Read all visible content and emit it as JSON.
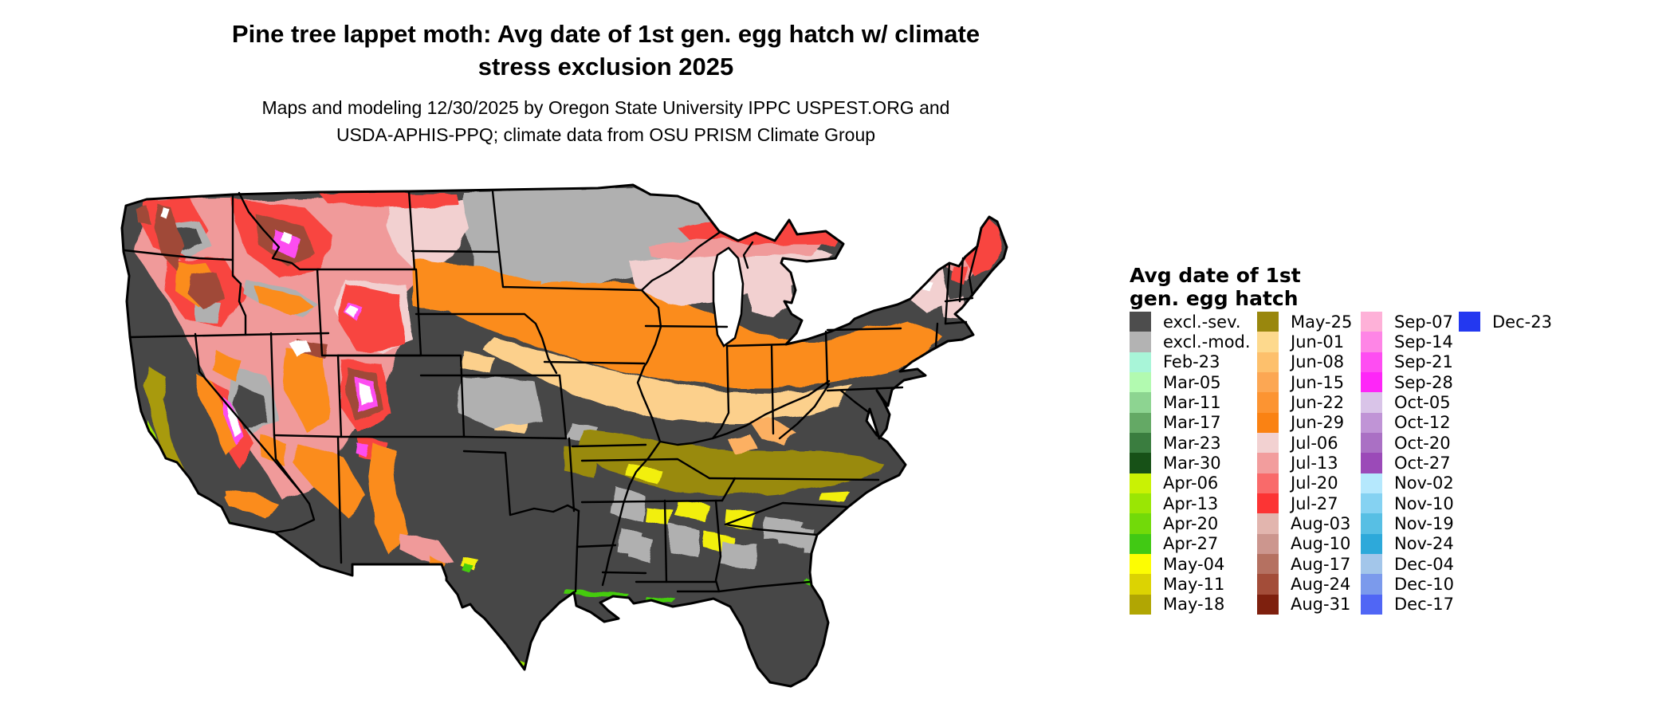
{
  "header": {
    "title_line1": "Pine tree lappet moth: Avg date of 1st gen. egg hatch w/ climate",
    "title_line2": "stress exclusion 2025",
    "subtitle_line1": "Maps and modeling 12/30/2025 by Oregon State University IPPC USPEST.ORG and",
    "subtitle_line2": "USDA-APHIS-PPQ; climate data from OSU PRISM Climate Group"
  },
  "map": {
    "region": "Contiguous United States (lower 48 states)",
    "type": "raster choropleth of modeled avg egg-hatch date",
    "boundary_color": "#000000",
    "background_color": "#ffffff"
  },
  "legend": {
    "title_line1": "Avg date of 1st",
    "title_line2": "gen. egg hatch",
    "columns": [
      {
        "entries": [
          {
            "label": "excl.-sev.",
            "color": "#4d4d4d"
          },
          {
            "label": "excl.-mod.",
            "color": "#b3b3b3"
          },
          {
            "label": "Feb-23",
            "color": "#a8f5d8"
          },
          {
            "label": "Mar-05",
            "color": "#b2fab0"
          },
          {
            "label": "Mar-11",
            "color": "#8dd491"
          },
          {
            "label": "Mar-17",
            "color": "#64a965"
          },
          {
            "label": "Mar-23",
            "color": "#3a7d3f"
          },
          {
            "label": "Mar-30",
            "color": "#175117"
          },
          {
            "label": "Apr-06",
            "color": "#c9f204"
          },
          {
            "label": "Apr-13",
            "color": "#9ae604"
          },
          {
            "label": "Apr-20",
            "color": "#72da09"
          },
          {
            "label": "Apr-27",
            "color": "#41c914"
          },
          {
            "label": "May-04",
            "color": "#fdfd02"
          },
          {
            "label": "May-11",
            "color": "#dcd302"
          },
          {
            "label": "May-18",
            "color": "#b1a603"
          }
        ]
      },
      {
        "entries": [
          {
            "label": "May-25",
            "color": "#99870d"
          },
          {
            "label": "Jun-01",
            "color": "#fdd98d"
          },
          {
            "label": "Jun-08",
            "color": "#fdc06c"
          },
          {
            "label": "Jun-15",
            "color": "#fca753"
          },
          {
            "label": "Jun-22",
            "color": "#fc9432"
          },
          {
            "label": "Jun-29",
            "color": "#fa8213"
          },
          {
            "label": "Jul-06",
            "color": "#f2d1d1"
          },
          {
            "label": "Jul-13",
            "color": "#f29d9d"
          },
          {
            "label": "Jul-20",
            "color": "#f96a6a"
          },
          {
            "label": "Jul-27",
            "color": "#fc3434"
          },
          {
            "label": "Aug-03",
            "color": "#e2b5ae"
          },
          {
            "label": "Aug-10",
            "color": "#cc968e"
          },
          {
            "label": "Aug-17",
            "color": "#b57161"
          },
          {
            "label": "Aug-24",
            "color": "#a34d39"
          },
          {
            "label": "Aug-31",
            "color": "#7e200e"
          }
        ]
      },
      {
        "entries": [
          {
            "label": "Sep-07",
            "color": "#feb1d8"
          },
          {
            "label": "Sep-14",
            "color": "#fe85e6"
          },
          {
            "label": "Sep-21",
            "color": "#fe4df2"
          },
          {
            "label": "Sep-28",
            "color": "#fe26f8"
          },
          {
            "label": "Oct-05",
            "color": "#d9c4e8"
          },
          {
            "label": "Oct-12",
            "color": "#c094d6"
          },
          {
            "label": "Oct-20",
            "color": "#aa70c4"
          },
          {
            "label": "Oct-27",
            "color": "#9b4ab8"
          },
          {
            "label": "Nov-02",
            "color": "#b5e8fd"
          },
          {
            "label": "Nov-10",
            "color": "#85d2f2"
          },
          {
            "label": "Nov-19",
            "color": "#57bfe4"
          },
          {
            "label": "Nov-24",
            "color": "#2da9da"
          },
          {
            "label": "Dec-04",
            "color": "#a3c6ea"
          },
          {
            "label": "Dec-10",
            "color": "#7b9aec"
          },
          {
            "label": "Dec-17",
            "color": "#5066f5"
          }
        ]
      },
      {
        "entries": [
          {
            "label": "Dec-23",
            "color": "#2338f0"
          }
        ]
      }
    ]
  }
}
